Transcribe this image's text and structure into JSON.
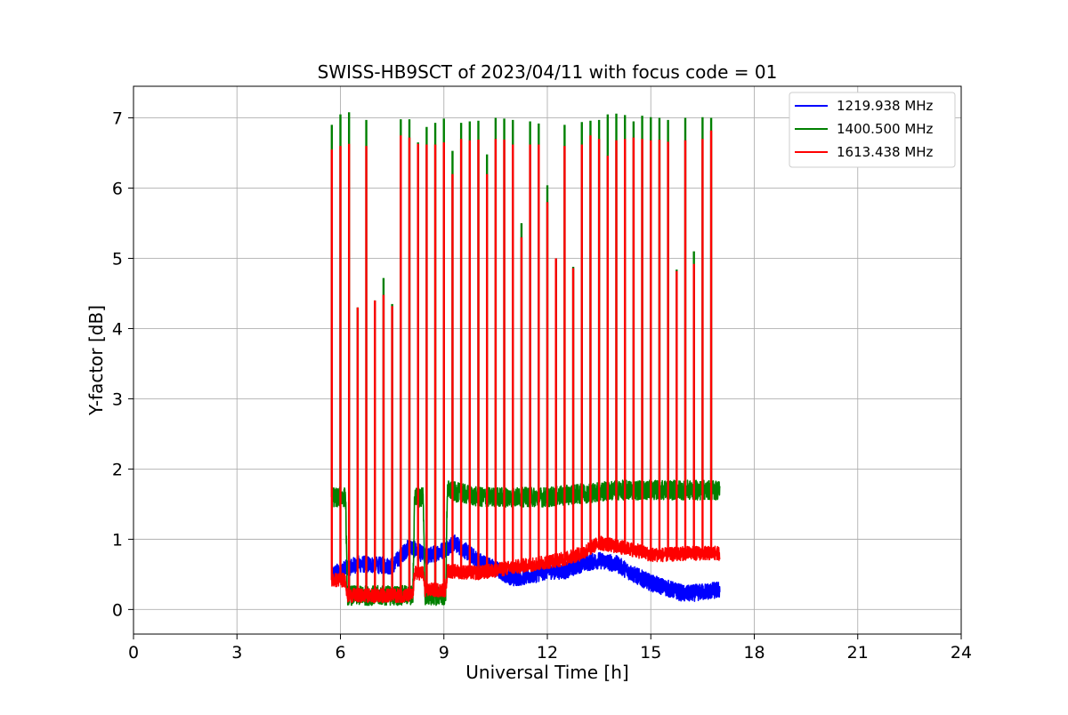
{
  "chart_data": {
    "type": "line",
    "title": "SWISS-HB9SCT of 2023/04/11 with focus code = 01",
    "xlabel": "Universal Time [h]",
    "ylabel": "Y-factor [dB]",
    "xlim": [
      0,
      24
    ],
    "ylim": [
      -0.35,
      7.45
    ],
    "xticks": [
      0,
      3,
      6,
      9,
      12,
      15,
      18,
      21,
      24
    ],
    "yticks": [
      0,
      1,
      2,
      3,
      4,
      5,
      6,
      7
    ],
    "xtick_labels": [
      "0",
      "3",
      "6",
      "9",
      "12",
      "15",
      "18",
      "21",
      "24"
    ],
    "ytick_labels": [
      "0",
      "1",
      "2",
      "3",
      "4",
      "5",
      "6",
      "7"
    ],
    "grid": true,
    "legend_position": "top-right",
    "data_range_hours": [
      5.75,
      17.0
    ],
    "calibration_spike_times": [
      5.75,
      6.0,
      6.25,
      6.5,
      6.75,
      7.0,
      7.25,
      7.5,
      7.75,
      8.0,
      8.25,
      8.5,
      8.75,
      9.0,
      9.25,
      9.5,
      9.75,
      10.0,
      10.25,
      10.5,
      10.75,
      11.0,
      11.25,
      11.5,
      11.75,
      12.0,
      12.25,
      12.5,
      12.75,
      13.0,
      13.25,
      13.5,
      13.75,
      14.0,
      14.25,
      14.5,
      14.75,
      15.0,
      15.25,
      15.5,
      15.75,
      16.0,
      16.25,
      16.5,
      16.75
    ],
    "series": [
      {
        "name": "1219.938 MHz",
        "color": "#0000ff",
        "baseline_time": [
          5.75,
          6.5,
          7.5,
          8.0,
          8.5,
          9.0,
          9.3,
          10.0,
          11.0,
          11.5,
          12.0,
          12.5,
          13.0,
          13.5,
          14.0,
          14.5,
          15.0,
          15.5,
          16.0,
          16.5,
          17.0
        ],
        "baseline_value": [
          0.5,
          0.65,
          0.62,
          0.9,
          0.75,
          0.85,
          0.95,
          0.7,
          0.45,
          0.48,
          0.55,
          0.55,
          0.65,
          0.7,
          0.65,
          0.5,
          0.38,
          0.3,
          0.22,
          0.25,
          0.28
        ],
        "noise": 0.12,
        "spike_peaks": []
      },
      {
        "name": "1400.500 MHz",
        "color": "#008000",
        "baseline_time": [
          5.75,
          6.15,
          6.2,
          7.8,
          8.1,
          8.15,
          8.4,
          8.45,
          9.05,
          9.1,
          10.0,
          11.0,
          12.0,
          13.0,
          14.0,
          15.0,
          16.0,
          17.0
        ],
        "baseline_value": [
          1.6,
          1.6,
          0.2,
          0.2,
          0.2,
          1.6,
          1.6,
          0.2,
          0.2,
          1.7,
          1.6,
          1.6,
          1.6,
          1.65,
          1.7,
          1.7,
          1.7,
          1.7
        ],
        "noise": 0.14,
        "spike_peaks": [
          6.9,
          7.05,
          7.08,
          4.3,
          6.97,
          4.4,
          4.72,
          4.35,
          6.98,
          6.98,
          6.65,
          6.87,
          6.93,
          6.99,
          6.53,
          6.93,
          6.95,
          6.96,
          6.48,
          7.0,
          6.99,
          6.97,
          5.5,
          6.95,
          6.92,
          6.04,
          5.0,
          6.9,
          4.88,
          6.94,
          6.96,
          6.97,
          7.05,
          7.06,
          7.04,
          6.95,
          7.03,
          7.01,
          7.0,
          6.97,
          4.84,
          7.0,
          5.1,
          7.01,
          7.0
        ]
      },
      {
        "name": "1613.438 MHz",
        "color": "#ff0000",
        "baseline_time": [
          5.75,
          6.15,
          6.2,
          7.8,
          8.1,
          8.15,
          8.4,
          8.45,
          9.05,
          9.1,
          10.0,
          11.0,
          12.0,
          12.5,
          13.0,
          13.5,
          14.0,
          14.5,
          15.0,
          15.5,
          16.0,
          17.0
        ],
        "baseline_value": [
          0.42,
          0.42,
          0.2,
          0.2,
          0.2,
          0.52,
          0.52,
          0.28,
          0.28,
          0.55,
          0.52,
          0.6,
          0.68,
          0.72,
          0.8,
          0.95,
          0.9,
          0.85,
          0.78,
          0.78,
          0.8,
          0.8
        ],
        "noise": 0.1,
        "spike_peaks": [
          6.55,
          6.6,
          6.63,
          4.3,
          6.6,
          4.4,
          4.48,
          4.32,
          6.75,
          6.72,
          6.63,
          6.62,
          6.62,
          6.65,
          6.2,
          6.7,
          6.68,
          6.69,
          6.2,
          6.7,
          6.69,
          6.62,
          5.3,
          6.62,
          6.62,
          5.8,
          5.0,
          6.6,
          4.86,
          6.62,
          6.75,
          6.7,
          6.46,
          6.68,
          6.7,
          6.72,
          6.7,
          6.68,
          6.69,
          6.66,
          4.82,
          6.68,
          4.92,
          6.7,
          6.82
        ]
      }
    ]
  }
}
